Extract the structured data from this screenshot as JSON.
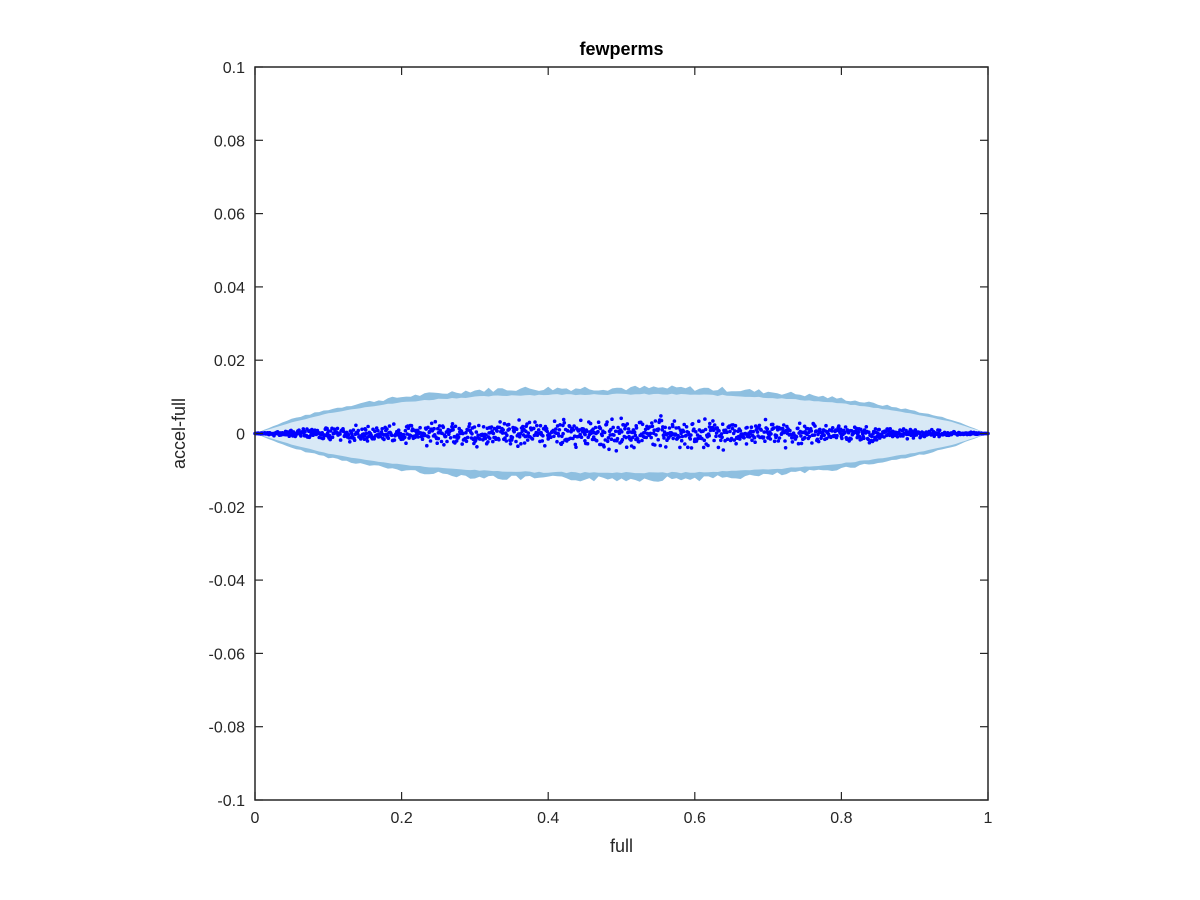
{
  "chart_data": {
    "type": "scatter",
    "title": "fewperms",
    "xlabel": "full",
    "ylabel": "accel-full",
    "xlim": [
      0,
      1
    ],
    "ylim": [
      -0.1,
      0.1
    ],
    "xticks": [
      "0",
      "0.2",
      "0.4",
      "0.6",
      "0.8",
      "1"
    ],
    "yticks": [
      "0.1",
      "0.08",
      "0.06",
      "0.04",
      "0.02",
      "0",
      "-0.02",
      "-0.04",
      "-0.06",
      "-0.08",
      "-0.1"
    ],
    "grid": false,
    "legend": "none",
    "band": {
      "description_of_shape": "symmetric envelope, zero at x=0 and x=1, widest near x=0.5",
      "x": [
        0,
        0.05,
        0.1,
        0.15,
        0.2,
        0.25,
        0.3,
        0.35,
        0.4,
        0.45,
        0.5,
        0.55,
        0.6,
        0.65,
        0.7,
        0.75,
        0.8,
        0.85,
        0.9,
        0.95,
        1.0
      ],
      "upper": [
        0.0,
        0.004,
        0.0065,
        0.0085,
        0.01,
        0.011,
        0.0118,
        0.0122,
        0.0123,
        0.0124,
        0.0124,
        0.0124,
        0.0123,
        0.012,
        0.0114,
        0.0106,
        0.0095,
        0.008,
        0.0062,
        0.0038,
        0.0
      ],
      "lower": [
        0.0,
        -0.004,
        -0.0065,
        -0.0085,
        -0.01,
        -0.011,
        -0.0118,
        -0.0122,
        -0.0123,
        -0.0124,
        -0.0124,
        -0.0124,
        -0.0123,
        -0.012,
        -0.0114,
        -0.0106,
        -0.0095,
        -0.008,
        -0.0062,
        -0.0038,
        0.0
      ],
      "inner_upper": [
        0.0,
        0.003,
        0.0055,
        0.0072,
        0.0085,
        0.0094,
        0.01,
        0.0104,
        0.0106,
        0.0107,
        0.0107,
        0.0107,
        0.0106,
        0.0103,
        0.0098,
        0.0091,
        0.0082,
        0.0069,
        0.0053,
        0.0032,
        0.0
      ],
      "inner_lower": [
        0.0,
        -0.003,
        -0.0055,
        -0.0072,
        -0.0085,
        -0.0094,
        -0.01,
        -0.0104,
        -0.0106,
        -0.0107,
        -0.0107,
        -0.0107,
        -0.0106,
        -0.0103,
        -0.0098,
        -0.0091,
        -0.0082,
        -0.0069,
        -0.0053,
        -0.0032,
        0.0
      ]
    },
    "points": {
      "x": [
        0.02,
        0.05,
        0.08,
        0.1,
        0.12,
        0.15,
        0.18,
        0.2,
        0.22,
        0.25,
        0.27,
        0.3,
        0.32,
        0.35,
        0.37,
        0.4,
        0.42,
        0.45,
        0.47,
        0.5,
        0.52,
        0.55,
        0.57,
        0.6,
        0.62,
        0.65,
        0.67,
        0.7,
        0.72,
        0.75,
        0.77,
        0.8,
        0.82,
        0.85,
        0.87,
        0.9,
        0.92,
        0.95,
        0.98
      ],
      "y": [
        0.0002,
        -0.0004,
        0.0006,
        -0.0008,
        0.001,
        -0.0005,
        0.0012,
        -0.001,
        0.0008,
        -0.0014,
        0.0015,
        -0.0012,
        0.0016,
        -0.0018,
        0.002,
        -0.0015,
        0.0022,
        -0.002,
        0.0018,
        -0.0022,
        0.0021,
        -0.0017,
        0.0019,
        -0.0016,
        0.0018,
        -0.0014,
        0.0015,
        -0.0012,
        0.0013,
        -0.0011,
        0.001,
        -0.0009,
        0.0008,
        -0.0007,
        0.0006,
        -0.0005,
        0.0004,
        -0.0003,
        0.0002
      ],
      "spread": [
        0.0004,
        0.0008,
        0.0012,
        0.0014,
        0.0016,
        0.0018,
        0.002,
        0.0022,
        0.0024,
        0.0025,
        0.0026,
        0.0027,
        0.0028,
        0.0029,
        0.003,
        0.0031,
        0.0032,
        0.0033,
        0.0034,
        0.0034,
        0.0034,
        0.0033,
        0.0032,
        0.0031,
        0.003,
        0.0028,
        0.0027,
        0.0026,
        0.0025,
        0.0024,
        0.0022,
        0.002,
        0.0018,
        0.0016,
        0.0014,
        0.0011,
        0.0009,
        0.0006,
        0.0003
      ]
    },
    "colors": {
      "band_outer": "#8ebfe0",
      "band_inner": "#d8e9f6",
      "points": "#0000ff",
      "axes": "#262626"
    }
  }
}
